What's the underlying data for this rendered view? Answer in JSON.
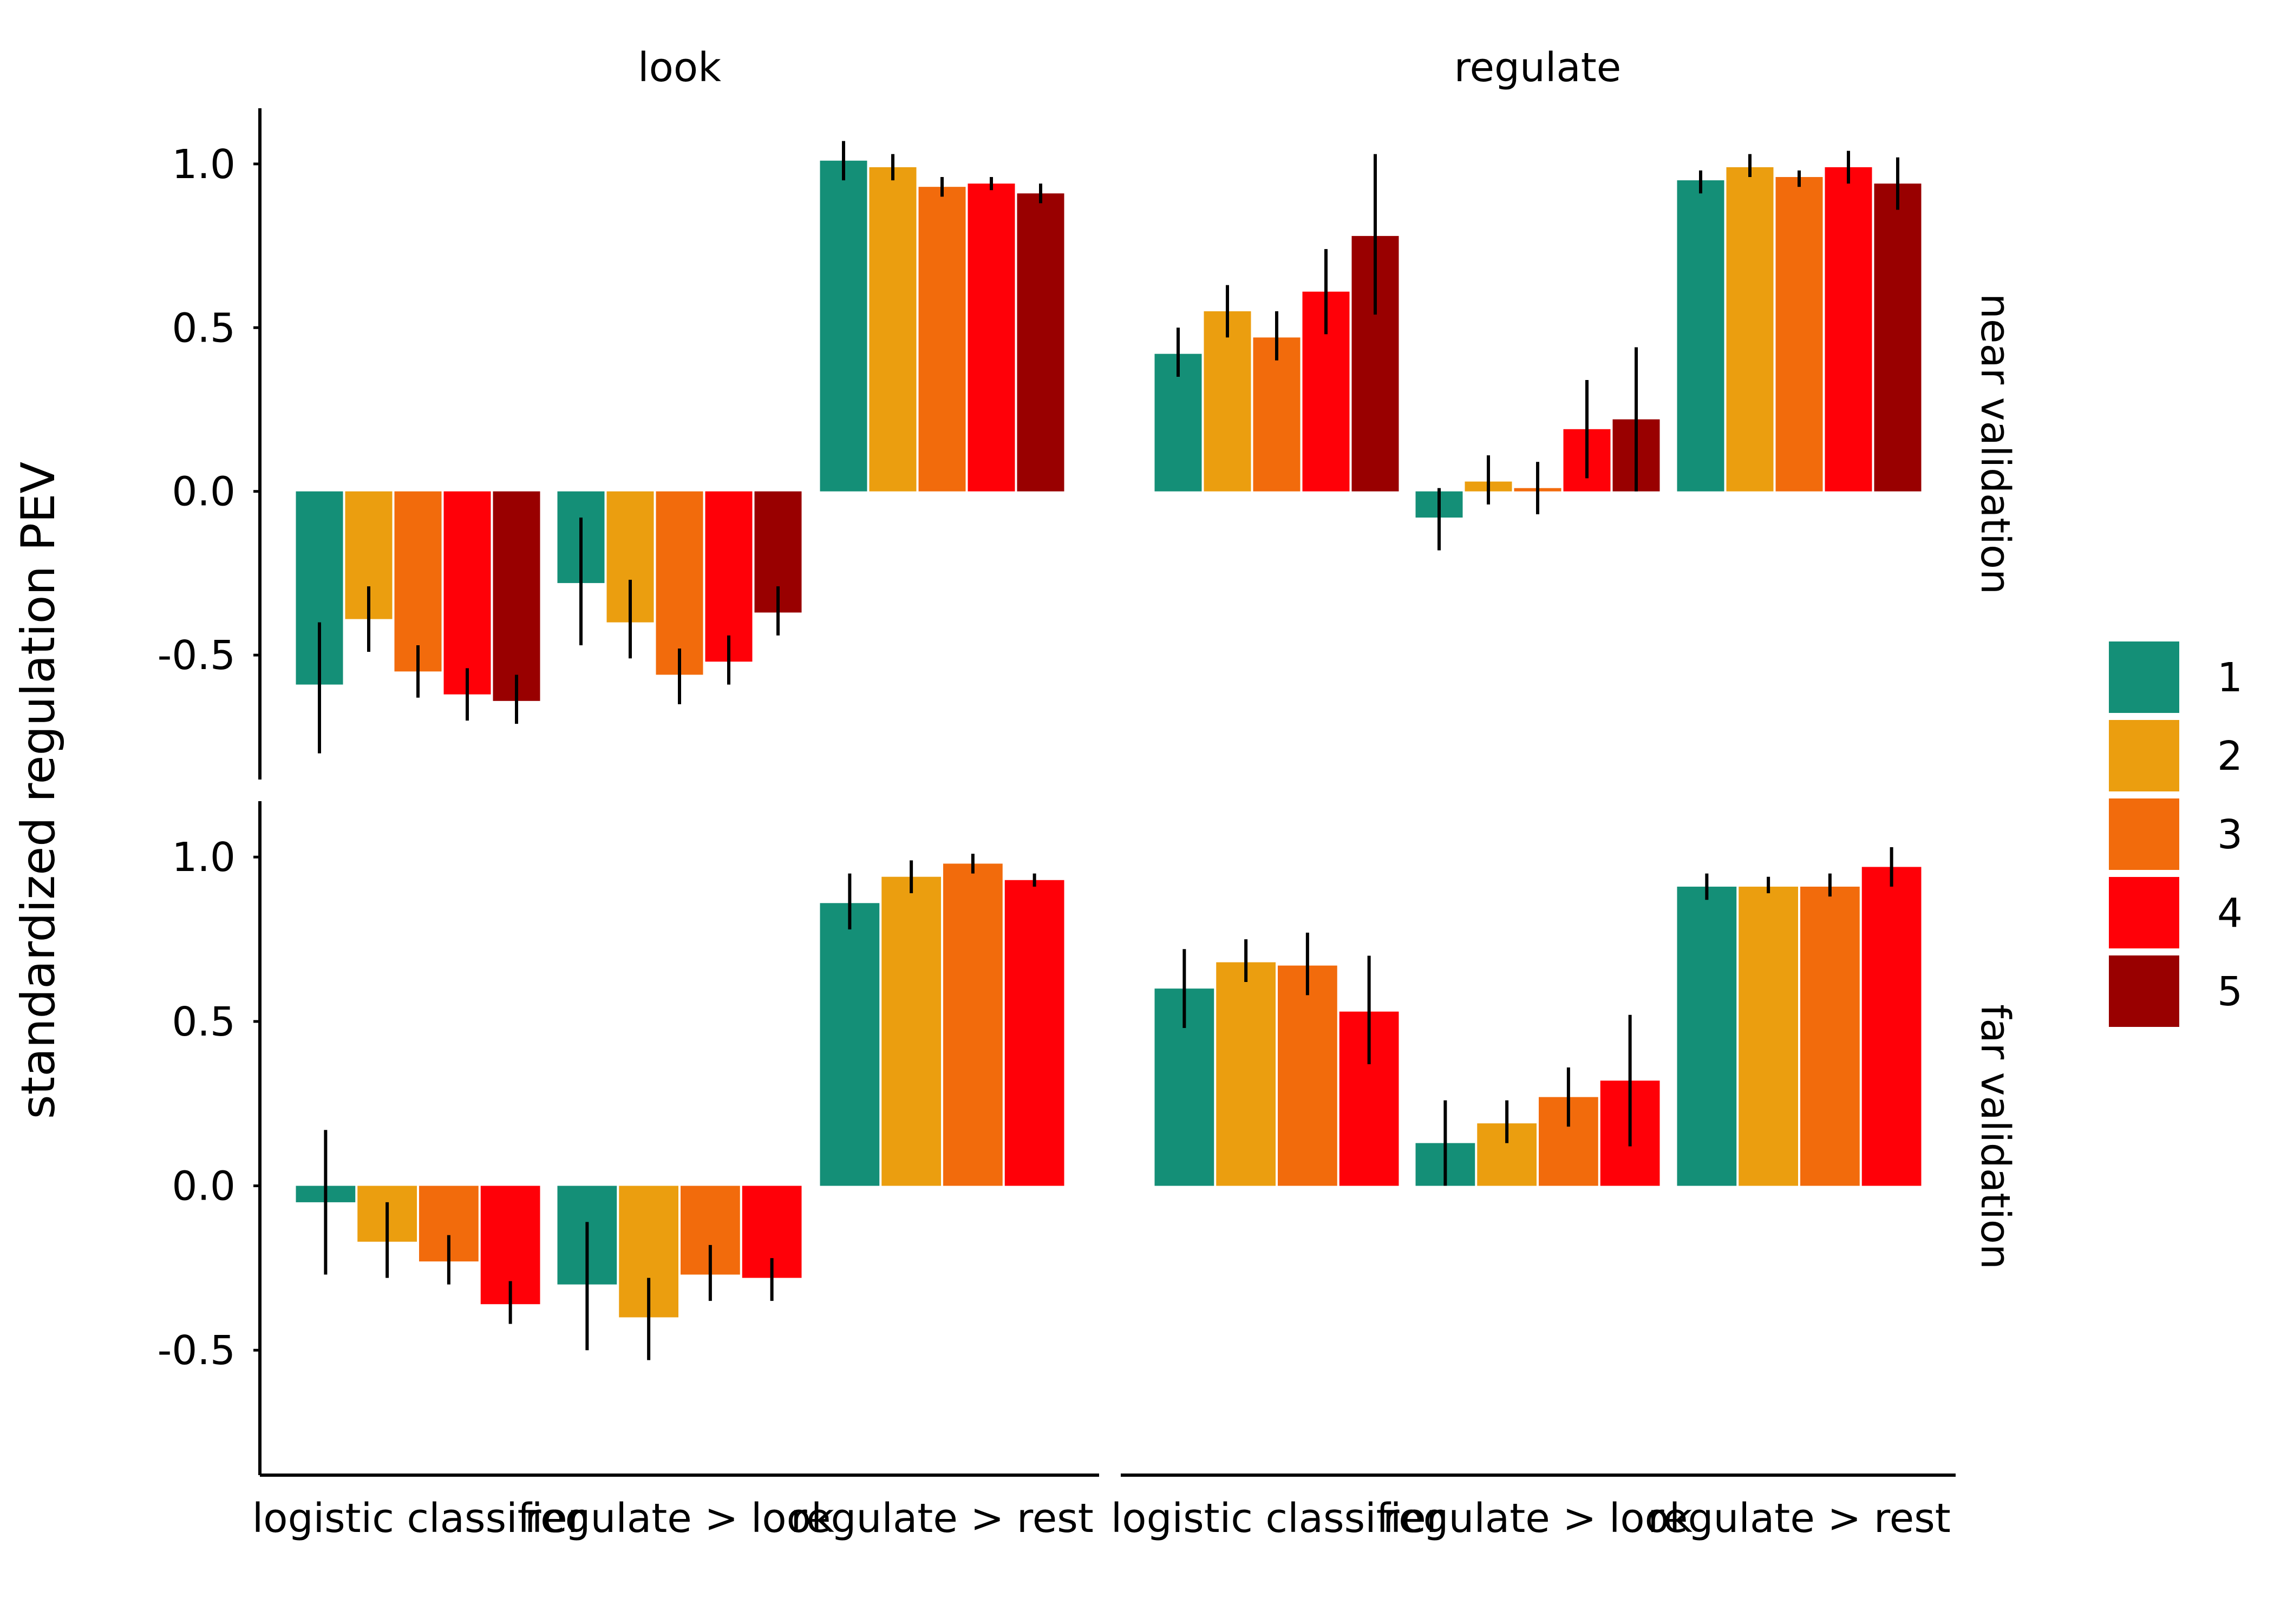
{
  "chart_data": {
    "type": "bar",
    "ylabel": "standardized regulation PEV",
    "xlabel": "",
    "col_facets": [
      "look",
      "regulate"
    ],
    "row_facets": [
      "near validation",
      "far validation"
    ],
    "categories": [
      "logistic classifier",
      "regulate > look",
      "regulate > rest"
    ],
    "ylim": [
      -0.88,
      1.17
    ],
    "yticks": [
      -0.5,
      0.0,
      0.5,
      1.0
    ],
    "ytick_labels": [
      "-0.5",
      "0.0",
      "0.5",
      "1.0"
    ],
    "grid": false,
    "legend": {
      "position": "right",
      "title": "",
      "items": [
        {
          "label": "1",
          "color": "#148f77"
        },
        {
          "label": "2",
          "color": "#eb9e0f"
        },
        {
          "label": "3",
          "color": "#f26b0c"
        },
        {
          "label": "4",
          "color": "#ff0008"
        },
        {
          "label": "5",
          "color": "#990000"
        }
      ]
    },
    "panels": [
      {
        "row": "near validation",
        "col": "look",
        "bars": [
          [
            {
              "v": -0.59,
              "lo": -0.8,
              "hi": -0.4
            },
            {
              "v": -0.39,
              "lo": -0.49,
              "hi": -0.29
            },
            {
              "v": -0.55,
              "lo": -0.63,
              "hi": -0.47
            },
            {
              "v": -0.62,
              "lo": -0.7,
              "hi": -0.54
            },
            {
              "v": -0.64,
              "lo": -0.71,
              "hi": -0.56
            }
          ],
          [
            {
              "v": -0.28,
              "lo": -0.47,
              "hi": -0.08
            },
            {
              "v": -0.4,
              "lo": -0.51,
              "hi": -0.27
            },
            {
              "v": -0.56,
              "lo": -0.65,
              "hi": -0.48
            },
            {
              "v": -0.52,
              "lo": -0.59,
              "hi": -0.44
            },
            {
              "v": -0.37,
              "lo": -0.44,
              "hi": -0.29
            }
          ],
          [
            {
              "v": 1.01,
              "lo": 0.95,
              "hi": 1.07
            },
            {
              "v": 0.99,
              "lo": 0.95,
              "hi": 1.03
            },
            {
              "v": 0.93,
              "lo": 0.9,
              "hi": 0.96
            },
            {
              "v": 0.94,
              "lo": 0.92,
              "hi": 0.96
            },
            {
              "v": 0.91,
              "lo": 0.88,
              "hi": 0.94
            }
          ]
        ]
      },
      {
        "row": "near validation",
        "col": "regulate",
        "bars": [
          [
            {
              "v": 0.42,
              "lo": 0.35,
              "hi": 0.5
            },
            {
              "v": 0.55,
              "lo": 0.47,
              "hi": 0.63
            },
            {
              "v": 0.47,
              "lo": 0.4,
              "hi": 0.55
            },
            {
              "v": 0.61,
              "lo": 0.48,
              "hi": 0.74
            },
            {
              "v": 0.78,
              "lo": 0.54,
              "hi": 1.03
            }
          ],
          [
            {
              "v": -0.08,
              "lo": -0.18,
              "hi": 0.01
            },
            {
              "v": 0.03,
              "lo": -0.04,
              "hi": 0.11
            },
            {
              "v": 0.01,
              "lo": -0.07,
              "hi": 0.09
            },
            {
              "v": 0.19,
              "lo": 0.04,
              "hi": 0.34
            },
            {
              "v": 0.22,
              "lo": 0.0,
              "hi": 0.44
            }
          ],
          [
            {
              "v": 0.95,
              "lo": 0.91,
              "hi": 0.98
            },
            {
              "v": 0.99,
              "lo": 0.96,
              "hi": 1.03
            },
            {
              "v": 0.96,
              "lo": 0.93,
              "hi": 0.98
            },
            {
              "v": 0.99,
              "lo": 0.94,
              "hi": 1.04
            },
            {
              "v": 0.94,
              "lo": 0.86,
              "hi": 1.02
            }
          ]
        ]
      },
      {
        "row": "far validation",
        "col": "look",
        "bars": [
          [
            {
              "v": -0.05,
              "lo": -0.27,
              "hi": 0.17
            },
            {
              "v": -0.17,
              "lo": -0.28,
              "hi": -0.05
            },
            {
              "v": -0.23,
              "lo": -0.3,
              "hi": -0.15
            },
            {
              "v": -0.36,
              "lo": -0.42,
              "hi": -0.29
            }
          ],
          [
            {
              "v": -0.3,
              "lo": -0.5,
              "hi": -0.11
            },
            {
              "v": -0.4,
              "lo": -0.53,
              "hi": -0.28
            },
            {
              "v": -0.27,
              "lo": -0.35,
              "hi": -0.18
            },
            {
              "v": -0.28,
              "lo": -0.35,
              "hi": -0.22
            }
          ],
          [
            {
              "v": 0.86,
              "lo": 0.78,
              "hi": 0.95
            },
            {
              "v": 0.94,
              "lo": 0.89,
              "hi": 0.99
            },
            {
              "v": 0.98,
              "lo": 0.95,
              "hi": 1.01
            },
            {
              "v": 0.93,
              "lo": 0.91,
              "hi": 0.95
            }
          ]
        ]
      },
      {
        "row": "far validation",
        "col": "regulate",
        "bars": [
          [
            {
              "v": 0.6,
              "lo": 0.48,
              "hi": 0.72
            },
            {
              "v": 0.68,
              "lo": 0.62,
              "hi": 0.75
            },
            {
              "v": 0.67,
              "lo": 0.58,
              "hi": 0.77
            },
            {
              "v": 0.53,
              "lo": 0.37,
              "hi": 0.7
            }
          ],
          [
            {
              "v": 0.13,
              "lo": 0.0,
              "hi": 0.26
            },
            {
              "v": 0.19,
              "lo": 0.13,
              "hi": 0.26
            },
            {
              "v": 0.27,
              "lo": 0.18,
              "hi": 0.36
            },
            {
              "v": 0.32,
              "lo": 0.12,
              "hi": 0.52
            }
          ],
          [
            {
              "v": 0.91,
              "lo": 0.87,
              "hi": 0.95
            },
            {
              "v": 0.91,
              "lo": 0.89,
              "hi": 0.94
            },
            {
              "v": 0.91,
              "lo": 0.88,
              "hi": 0.95
            },
            {
              "v": 0.97,
              "lo": 0.91,
              "hi": 1.03
            }
          ]
        ]
      }
    ]
  }
}
